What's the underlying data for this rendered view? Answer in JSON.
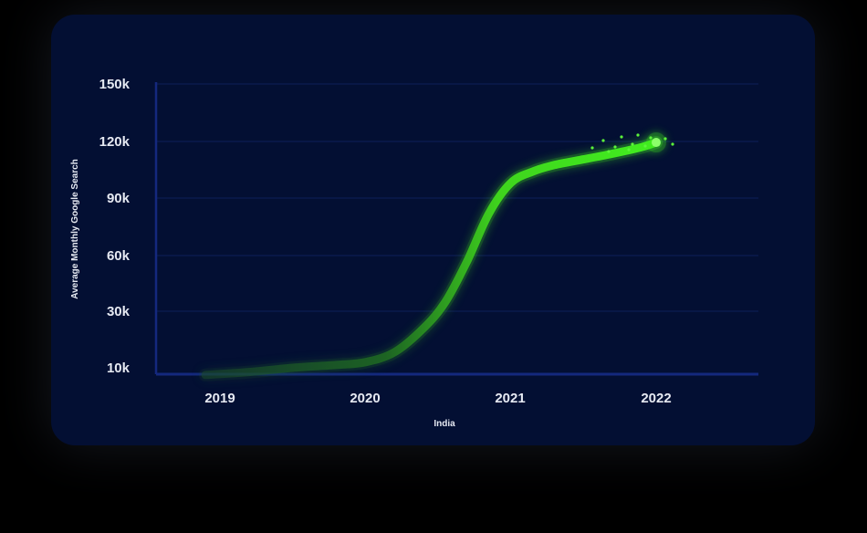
{
  "chart_data": {
    "type": "line",
    "title": "",
    "xlabel": "India",
    "ylabel": "Average Monthly Google Search",
    "x_ticks": [
      "2019",
      "2020",
      "2021",
      "2022"
    ],
    "y_ticks": [
      "10k",
      "30k",
      "60k",
      "90k",
      "120k",
      "150k"
    ],
    "y_tick_values": [
      10000,
      30000,
      60000,
      90000,
      120000,
      150000
    ],
    "xlim": [
      2018.9,
      2022.8
    ],
    "ylim": [
      0,
      150000
    ],
    "grid": true,
    "series": [
      {
        "color": "#3ee81f",
        "x": [
          2018.9,
          2019.2,
          2019.5,
          2019.8,
          2020.0,
          2020.2,
          2020.4,
          2020.55,
          2020.7,
          2020.85,
          2021.0,
          2021.15,
          2021.3,
          2021.5,
          2021.7,
          2021.9,
          2022.0
        ],
        "y": [
          7500,
          8500,
          10000,
          11000,
          12000,
          15500,
          24000,
          35000,
          57000,
          82000,
          98000,
          104000,
          107500,
          110500,
          113500,
          117000,
          119500
        ]
      }
    ]
  },
  "colors": {
    "background": "#000000",
    "card": "#030f33",
    "axis": "#14287e",
    "grid": "#0e1f5a",
    "line_start": "#1f5a2a",
    "line_end": "#3ee81f"
  }
}
